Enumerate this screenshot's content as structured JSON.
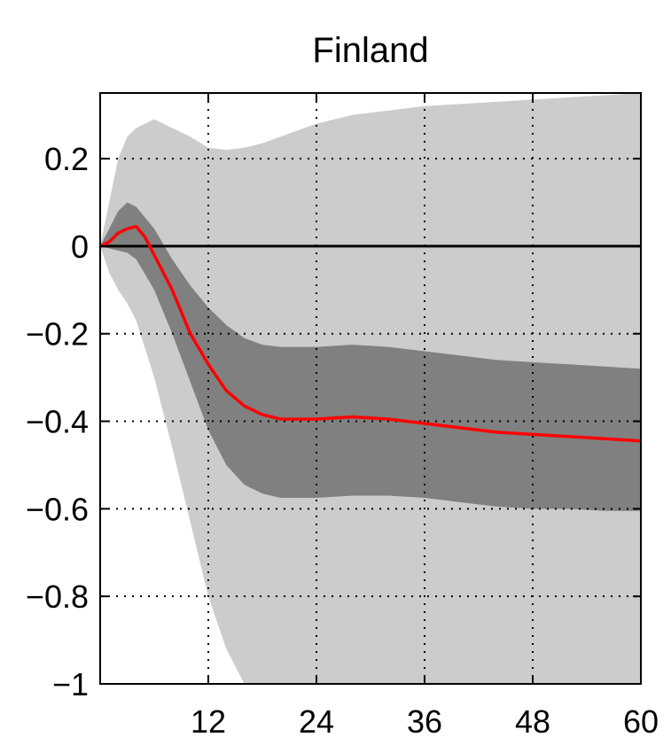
{
  "chart_data": {
    "type": "area",
    "title": "Finland",
    "xlabel": "",
    "ylabel": "",
    "xlim": [
      0,
      60
    ],
    "ylim": [
      -1,
      0.35
    ],
    "x_ticks": [
      12,
      24,
      36,
      48,
      60
    ],
    "y_ticks": [
      0.2,
      0,
      -0.2,
      -0.4,
      -0.6,
      -0.8,
      -1
    ],
    "y_tick_labels": [
      "0.2",
      "0",
      "−0.2",
      "−0.4",
      "−0.6",
      "−0.8",
      "−1"
    ],
    "x_tick_labels": [
      "12",
      "24",
      "36",
      "48",
      "60"
    ],
    "grid": true,
    "reference_line": 0,
    "colors": {
      "outer_band": "#cccccc",
      "inner_band": "#808080",
      "median": "#ff0000",
      "zero_line": "#000000"
    },
    "series": [
      {
        "name": "outer_band",
        "x": [
          0,
          1,
          2,
          3,
          4,
          6,
          8,
          10,
          12,
          14,
          16,
          18,
          20,
          24,
          28,
          32,
          36,
          40,
          44,
          48,
          52,
          56,
          60
        ],
        "upper": [
          0,
          0.1,
          0.2,
          0.25,
          0.27,
          0.29,
          0.27,
          0.25,
          0.225,
          0.22,
          0.225,
          0.235,
          0.25,
          0.28,
          0.3,
          0.31,
          0.32,
          0.325,
          0.33,
          0.335,
          0.34,
          0.345,
          0.35
        ],
        "lower": [
          0,
          -0.06,
          -0.1,
          -0.13,
          -0.17,
          -0.3,
          -0.46,
          -0.63,
          -0.8,
          -0.92,
          -1.0,
          -1.06,
          -1.1,
          -1.15,
          -1.18,
          -1.2,
          -1.21,
          -1.22,
          -1.22,
          -1.22,
          -1.22,
          -1.22,
          -1.22
        ]
      },
      {
        "name": "inner_band",
        "x": [
          0,
          1,
          2,
          3,
          4,
          6,
          8,
          10,
          12,
          14,
          16,
          18,
          20,
          22,
          24,
          28,
          32,
          36,
          40,
          44,
          48,
          52,
          56,
          60
        ],
        "upper": [
          0,
          0.04,
          0.08,
          0.1,
          0.09,
          0.04,
          -0.03,
          -0.09,
          -0.14,
          -0.18,
          -0.21,
          -0.225,
          -0.23,
          -0.23,
          -0.23,
          -0.225,
          -0.23,
          -0.24,
          -0.25,
          -0.26,
          -0.265,
          -0.27,
          -0.275,
          -0.28
        ],
        "lower": [
          0,
          -0.005,
          -0.01,
          -0.015,
          -0.03,
          -0.1,
          -0.2,
          -0.31,
          -0.42,
          -0.5,
          -0.545,
          -0.565,
          -0.575,
          -0.575,
          -0.575,
          -0.57,
          -0.57,
          -0.575,
          -0.585,
          -0.595,
          -0.6,
          -0.6,
          -0.605,
          -0.605
        ]
      },
      {
        "name": "median",
        "x": [
          0,
          1,
          2,
          3,
          4,
          5,
          6,
          7,
          8,
          9,
          10,
          12,
          14,
          16,
          18,
          20,
          24,
          28,
          32,
          36,
          40,
          44,
          48,
          52,
          56,
          60
        ],
        "values": [
          0,
          0.01,
          0.03,
          0.04,
          0.045,
          0.02,
          -0.02,
          -0.06,
          -0.1,
          -0.15,
          -0.2,
          -0.27,
          -0.33,
          -0.365,
          -0.385,
          -0.395,
          -0.395,
          -0.39,
          -0.395,
          -0.405,
          -0.415,
          -0.425,
          -0.43,
          -0.435,
          -0.44,
          -0.445
        ]
      }
    ]
  }
}
